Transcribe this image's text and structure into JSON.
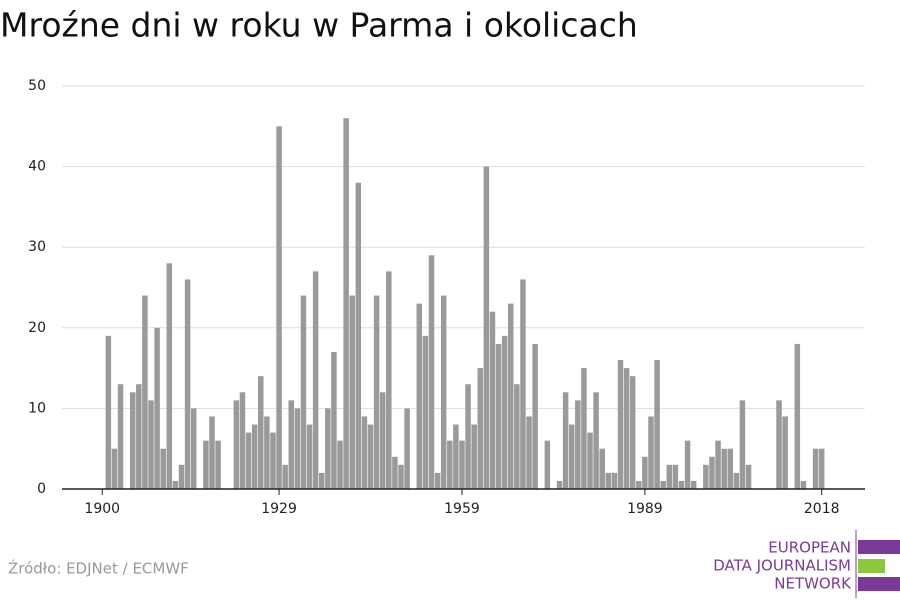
{
  "chart_data": {
    "type": "bar",
    "title": "Mroźne dni w roku w Parma i okolicach",
    "x": [
      1900,
      1901,
      1902,
      1903,
      1904,
      1905,
      1906,
      1907,
      1908,
      1909,
      1910,
      1911,
      1912,
      1913,
      1914,
      1915,
      1916,
      1917,
      1918,
      1919,
      1920,
      1921,
      1922,
      1923,
      1924,
      1925,
      1926,
      1927,
      1928,
      1929,
      1930,
      1931,
      1932,
      1933,
      1934,
      1935,
      1936,
      1937,
      1938,
      1939,
      1940,
      1941,
      1942,
      1943,
      1944,
      1945,
      1946,
      1947,
      1948,
      1949,
      1950,
      1951,
      1952,
      1953,
      1954,
      1955,
      1956,
      1957,
      1958,
      1959,
      1960,
      1961,
      1962,
      1963,
      1964,
      1965,
      1966,
      1967,
      1968,
      1969,
      1970,
      1971,
      1972,
      1973,
      1974,
      1975,
      1976,
      1977,
      1978,
      1979,
      1980,
      1981,
      1982,
      1983,
      1984,
      1985,
      1986,
      1987,
      1988,
      1989,
      1990,
      1991,
      1992,
      1993,
      1994,
      1995,
      1996,
      1997,
      1998,
      1999,
      2000,
      2001,
      2002,
      2003,
      2004,
      2005,
      2006,
      2007,
      2008,
      2009,
      2010,
      2011,
      2012,
      2013,
      2014,
      2015,
      2016,
      2017,
      2018
    ],
    "values": [
      0,
      19,
      5,
      13,
      0,
      12,
      13,
      24,
      11,
      20,
      5,
      28,
      1,
      3,
      26,
      10,
      0,
      6,
      9,
      6,
      0,
      0,
      11,
      12,
      7,
      8,
      14,
      9,
      7,
      45,
      3,
      11,
      10,
      24,
      8,
      27,
      2,
      10,
      17,
      6,
      46,
      24,
      38,
      9,
      8,
      24,
      12,
      27,
      4,
      3,
      10,
      0,
      23,
      19,
      29,
      2,
      24,
      6,
      8,
      6,
      13,
      8,
      15,
      40,
      22,
      18,
      19,
      23,
      13,
      26,
      9,
      18,
      0,
      6,
      0,
      1,
      12,
      8,
      11,
      15,
      7,
      12,
      5,
      2,
      2,
      16,
      15,
      14,
      1,
      4,
      9,
      16,
      1,
      3,
      3,
      1,
      6,
      1,
      0,
      3,
      4,
      6,
      5,
      5,
      2,
      11,
      3,
      0,
      0,
      0,
      0,
      11,
      9,
      0,
      18,
      1,
      0,
      5,
      5
    ],
    "color": "#9a9a9a",
    "xlim": [
      1893.4,
      2025.1
    ],
    "xticks": [
      1900,
      1929,
      1959,
      1989,
      2018
    ],
    "ylim": [
      0,
      50
    ],
    "yticks": [
      0,
      10,
      20,
      30,
      40,
      50
    ],
    "grid": true
  },
  "footer": {
    "source": "Źródło: EDJNet / ECMWF",
    "logo": [
      "EUROPEAN",
      "DATA JOURNALISM",
      "NETWORK"
    ]
  }
}
